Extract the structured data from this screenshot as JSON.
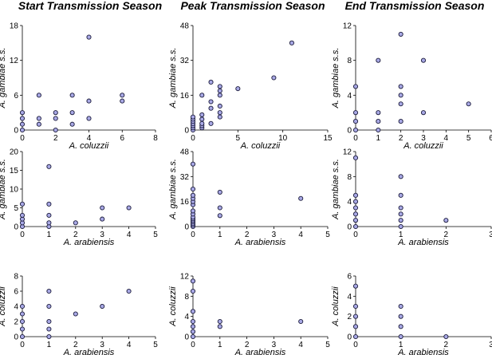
{
  "colors": {
    "point_fill": "#a9a9e6",
    "point_stroke": "#1a1a3a",
    "axis": "#000000"
  },
  "column_titles": [
    "Start Transmission Season",
    "Peak Transmission Season",
    "End Transmission Season"
  ],
  "chart_data": [
    {
      "id": "start-coluzzii-vs-gambiae",
      "type": "scatter",
      "title": "Start Transmission Season",
      "xlabel": "A. coluzzii",
      "ylabel": "A. gambiae s.s.",
      "xlim": [
        0,
        8
      ],
      "ylim": [
        0,
        18
      ],
      "xticks": [
        0,
        2,
        4,
        6,
        8
      ],
      "yticks": [
        0,
        6,
        12,
        18
      ],
      "grid": false,
      "points": [
        [
          0,
          0
        ],
        [
          0,
          1
        ],
        [
          0,
          2
        ],
        [
          0,
          3
        ],
        [
          1,
          1
        ],
        [
          1,
          2
        ],
        [
          1,
          6
        ],
        [
          2,
          0
        ],
        [
          2,
          2
        ],
        [
          2,
          3
        ],
        [
          3,
          1
        ],
        [
          3,
          3
        ],
        [
          3,
          6
        ],
        [
          4,
          2
        ],
        [
          4,
          5
        ],
        [
          4,
          16
        ],
        [
          6,
          5
        ],
        [
          6,
          6
        ]
      ]
    },
    {
      "id": "peak-coluzzii-vs-gambiae",
      "type": "scatter",
      "title": "Peak Transmission Season",
      "xlabel": "A. coluzzii",
      "ylabel": "A. gambiae s.s.",
      "xlim": [
        0,
        15
      ],
      "ylim": [
        0,
        48
      ],
      "xticks": [
        0,
        5,
        10,
        15
      ],
      "yticks": [
        0,
        16,
        32,
        48
      ],
      "grid": false,
      "points": [
        [
          0,
          0
        ],
        [
          0,
          1
        ],
        [
          0,
          2
        ],
        [
          0,
          3
        ],
        [
          0,
          4
        ],
        [
          0,
          5
        ],
        [
          0,
          6
        ],
        [
          1,
          1
        ],
        [
          1,
          2
        ],
        [
          1,
          3
        ],
        [
          1,
          5
        ],
        [
          1,
          7
        ],
        [
          1,
          16
        ],
        [
          2,
          3
        ],
        [
          2,
          10
        ],
        [
          2,
          13
        ],
        [
          2,
          22
        ],
        [
          3,
          6
        ],
        [
          3,
          8
        ],
        [
          3,
          11
        ],
        [
          3,
          16
        ],
        [
          3,
          18
        ],
        [
          3,
          20
        ],
        [
          5,
          19
        ],
        [
          9,
          24
        ],
        [
          11,
          40
        ]
      ]
    },
    {
      "id": "end-coluzzii-vs-gambiae",
      "type": "scatter",
      "title": "End Transmission Season",
      "xlabel": "A. coluzzii",
      "ylabel": "A. gambiae s.s.",
      "xlim": [
        0,
        6
      ],
      "ylim": [
        0,
        12
      ],
      "xticks": [
        0,
        1,
        2,
        3,
        4,
        5,
        6
      ],
      "yticks": [
        0,
        4,
        8,
        12
      ],
      "grid": false,
      "points": [
        [
          0,
          0
        ],
        [
          0,
          1
        ],
        [
          0,
          2
        ],
        [
          0,
          5
        ],
        [
          1,
          0
        ],
        [
          1,
          1
        ],
        [
          1,
          2
        ],
        [
          1,
          8
        ],
        [
          2,
          1
        ],
        [
          2,
          3
        ],
        [
          2,
          4
        ],
        [
          2,
          5
        ],
        [
          2,
          11
        ],
        [
          3,
          2
        ],
        [
          3,
          8
        ],
        [
          5,
          3
        ]
      ]
    },
    {
      "id": "start-arabiensis-vs-gambiae",
      "type": "scatter",
      "xlabel": "A. arabiensis",
      "ylabel": "A. gambiae s.s.",
      "xlim": [
        0,
        5
      ],
      "ylim": [
        0,
        20
      ],
      "xticks": [
        0,
        1,
        2,
        3,
        4,
        5
      ],
      "yticks": [
        0,
        5,
        10,
        15,
        20
      ],
      "grid": false,
      "points": [
        [
          0,
          0
        ],
        [
          0,
          1
        ],
        [
          0,
          2
        ],
        [
          0,
          3
        ],
        [
          0,
          6
        ],
        [
          1,
          0
        ],
        [
          1,
          1
        ],
        [
          1,
          3
        ],
        [
          1,
          6
        ],
        [
          1,
          16
        ],
        [
          2,
          1
        ],
        [
          3,
          2
        ],
        [
          3,
          5
        ],
        [
          4,
          5
        ]
      ]
    },
    {
      "id": "peak-arabiensis-vs-gambiae",
      "type": "scatter",
      "xlabel": "A. arabiensis",
      "ylabel": "A. gambiae s.s.",
      "xlim": [
        0,
        5
      ],
      "ylim": [
        0,
        48
      ],
      "xticks": [
        0,
        1,
        2,
        3,
        4,
        5
      ],
      "yticks": [
        0,
        16,
        32,
        48
      ],
      "grid": false,
      "points": [
        [
          0,
          0
        ],
        [
          0,
          1
        ],
        [
          0,
          2
        ],
        [
          0,
          3
        ],
        [
          0,
          4
        ],
        [
          0,
          5
        ],
        [
          0,
          6
        ],
        [
          0,
          8
        ],
        [
          0,
          10
        ],
        [
          0,
          14
        ],
        [
          0,
          16
        ],
        [
          0,
          18
        ],
        [
          0,
          20
        ],
        [
          0,
          24
        ],
        [
          0,
          40
        ],
        [
          1,
          7
        ],
        [
          1,
          12
        ],
        [
          1,
          22
        ],
        [
          4,
          18
        ]
      ]
    },
    {
      "id": "end-arabiensis-vs-gambiae",
      "type": "scatter",
      "xlabel": "A. arabiensis",
      "ylabel": "A. gambiae s.s.",
      "xlim": [
        0,
        3
      ],
      "ylim": [
        0,
        12
      ],
      "xticks": [
        0,
        1,
        2,
        3
      ],
      "yticks": [
        0,
        4,
        8,
        12
      ],
      "grid": false,
      "points": [
        [
          0,
          0
        ],
        [
          0,
          1
        ],
        [
          0,
          2
        ],
        [
          0,
          3
        ],
        [
          0,
          4
        ],
        [
          0,
          5
        ],
        [
          0,
          11
        ],
        [
          1,
          0
        ],
        [
          1,
          1
        ],
        [
          1,
          2
        ],
        [
          1,
          3
        ],
        [
          1,
          5
        ],
        [
          1,
          8
        ],
        [
          2,
          1
        ]
      ]
    },
    {
      "id": "start-arabiensis-vs-coluzzii",
      "type": "scatter",
      "xlabel": "A. arabiensis",
      "ylabel": "A. coluzzii",
      "xlim": [
        0,
        5
      ],
      "ylim": [
        0,
        8
      ],
      "xticks": [
        0,
        1,
        2,
        3,
        4,
        5
      ],
      "yticks": [
        0,
        2,
        4,
        6,
        8
      ],
      "grid": false,
      "points": [
        [
          0,
          0
        ],
        [
          0,
          1
        ],
        [
          0,
          2
        ],
        [
          0,
          3
        ],
        [
          0,
          4
        ],
        [
          1,
          0
        ],
        [
          1,
          1
        ],
        [
          1,
          2
        ],
        [
          1,
          4
        ],
        [
          1,
          6
        ],
        [
          2,
          3
        ],
        [
          3,
          4
        ],
        [
          4,
          6
        ]
      ]
    },
    {
      "id": "peak-arabiensis-vs-coluzzii",
      "type": "scatter",
      "xlabel": "A. arabiensis",
      "ylabel": "A. coluzzii",
      "xlim": [
        0,
        5
      ],
      "ylim": [
        0,
        12
      ],
      "xticks": [
        0,
        1,
        2,
        3,
        4,
        5
      ],
      "yticks": [
        0,
        4,
        8,
        12
      ],
      "grid": false,
      "points": [
        [
          0,
          0
        ],
        [
          0,
          1
        ],
        [
          0,
          2
        ],
        [
          0,
          3
        ],
        [
          0,
          5
        ],
        [
          0,
          9
        ],
        [
          0,
          11
        ],
        [
          1,
          2
        ],
        [
          1,
          3
        ],
        [
          4,
          3
        ]
      ]
    },
    {
      "id": "end-arabiensis-vs-coluzzii",
      "type": "scatter",
      "xlabel": "A. arabiensis",
      "ylabel": "A. coluzzii",
      "xlim": [
        0,
        3
      ],
      "ylim": [
        0,
        6
      ],
      "xticks": [
        0,
        1,
        2,
        3
      ],
      "yticks": [
        0,
        2,
        4,
        6
      ],
      "grid": false,
      "points": [
        [
          0,
          0
        ],
        [
          0,
          1
        ],
        [
          0,
          2
        ],
        [
          0,
          3
        ],
        [
          0,
          5
        ],
        [
          1,
          0
        ],
        [
          1,
          1
        ],
        [
          1,
          2
        ],
        [
          1,
          3
        ],
        [
          2,
          0
        ]
      ]
    }
  ]
}
